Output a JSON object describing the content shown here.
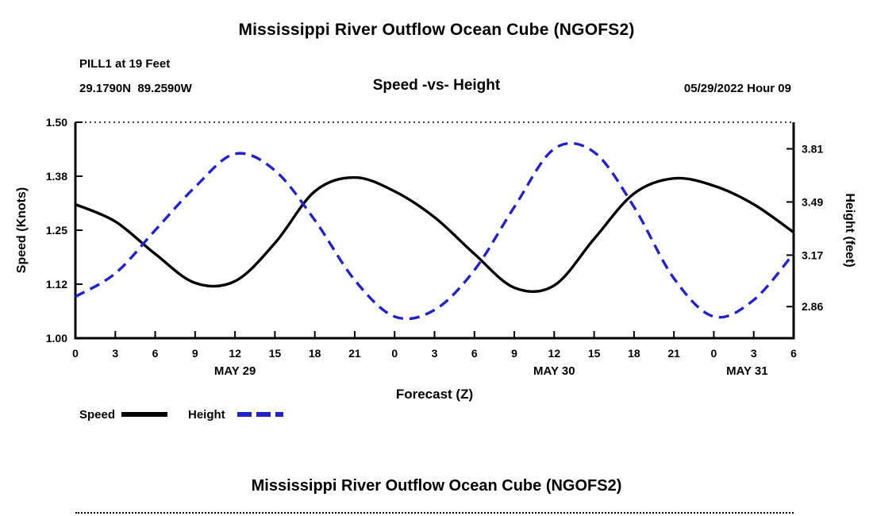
{
  "header": {
    "title": "Mississippi River Outflow Ocean Cube (NGOFS2)"
  },
  "subtitle": {
    "station": "PILL1 at 19 Feet",
    "coordinates": "29.1790N  89.2590W",
    "plot_title": "Speed -vs- Height",
    "datetime": "05/29/2022 Hour 09"
  },
  "footer": {
    "title": "Mississippi River Outflow Ocean Cube (NGOFS2)"
  },
  "colors": {
    "speed": "#000000",
    "height": "#2222cc",
    "background": "#ffffff"
  },
  "chart_data": {
    "type": "line",
    "title": "Speed -vs- Height",
    "x_axis": {
      "label": "Forecast (Z)",
      "unit": "hours",
      "range_hours": [
        0,
        54
      ],
      "tick_step_hours": 3,
      "tick_labels": [
        "0",
        "3",
        "6",
        "9",
        "12",
        "15",
        "18",
        "21",
        "0",
        "3",
        "6",
        "9",
        "12",
        "15",
        "18",
        "21",
        "0",
        "3",
        "6"
      ],
      "date_labels": [
        {
          "label": "MAY 29",
          "hour": 12
        },
        {
          "label": "MAY 30",
          "hour": 36
        },
        {
          "label": "MAY 31",
          "hour": 50.5
        }
      ]
    },
    "left_axis": {
      "label": "Speed (Knots)",
      "range": [
        1.0,
        1.5
      ],
      "ticks": [
        {
          "value": 1.0,
          "label": "1.00"
        },
        {
          "value": 1.125,
          "label": "1.12"
        },
        {
          "value": 1.25,
          "label": "1.25"
        },
        {
          "value": 1.375,
          "label": "1.38"
        },
        {
          "value": 1.5,
          "label": "1.50"
        }
      ]
    },
    "right_axis": {
      "label": "Height (feet)",
      "range": [
        2.67,
        3.97
      ],
      "ticks": [
        {
          "value": 2.86,
          "label": "2.86"
        },
        {
          "value": 3.17,
          "label": "3.17"
        },
        {
          "value": 3.49,
          "label": "3.49"
        },
        {
          "value": 3.81,
          "label": "3.81"
        }
      ]
    },
    "series": [
      {
        "name": "Speed",
        "axis": "left",
        "color": "#000000",
        "dash": null,
        "width": 3.4,
        "x": [
          0,
          3,
          6,
          9,
          12,
          15,
          18,
          21,
          24,
          27,
          30,
          33,
          36,
          39,
          42,
          45,
          48,
          51,
          54
        ],
        "y": [
          1.31,
          1.27,
          1.195,
          1.128,
          1.132,
          1.22,
          1.34,
          1.372,
          1.34,
          1.28,
          1.195,
          1.117,
          1.122,
          1.23,
          1.335,
          1.37,
          1.353,
          1.31,
          1.245
        ]
      },
      {
        "name": "Height",
        "axis": "right",
        "color": "#2222cc",
        "dash": [
          13,
          8
        ],
        "width": 3.4,
        "x": [
          0,
          3,
          6,
          9,
          12,
          15,
          18,
          21,
          24,
          27,
          30,
          33,
          36,
          39,
          42,
          45,
          48,
          51,
          54
        ],
        "y": [
          2.92,
          3.06,
          3.32,
          3.58,
          3.78,
          3.68,
          3.38,
          3.02,
          2.8,
          2.84,
          3.08,
          3.46,
          3.81,
          3.79,
          3.46,
          3.03,
          2.8,
          2.9,
          3.18
        ]
      }
    ],
    "legend": {
      "position": "bottom-left",
      "entries": [
        {
          "label": "Speed",
          "color": "#000000",
          "dash": null
        },
        {
          "label": "Height",
          "color": "#2222cc",
          "dash": [
            18,
            6
          ]
        }
      ]
    },
    "grid": false
  }
}
